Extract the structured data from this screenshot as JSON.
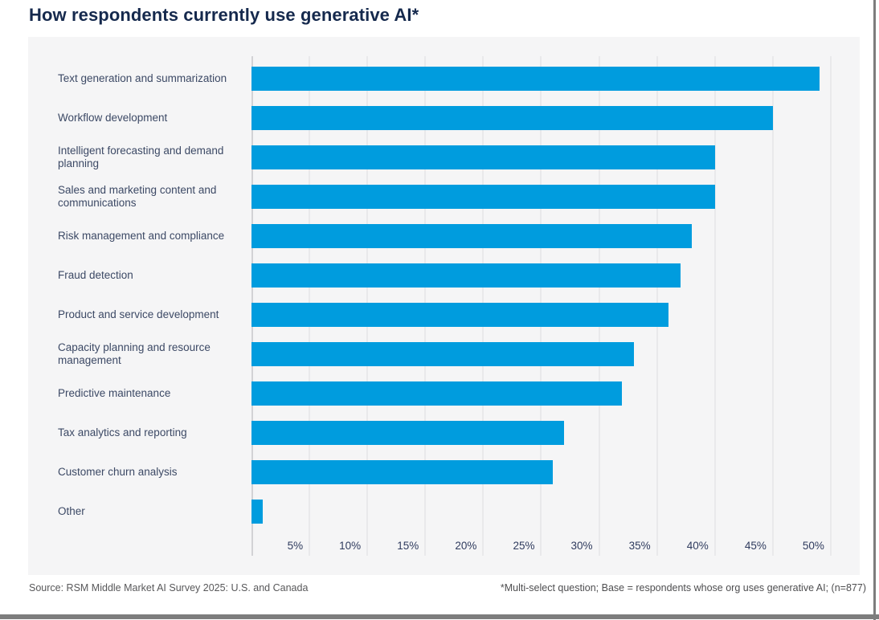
{
  "title": "How respondents currently use generative AI*",
  "chart_data": {
    "type": "bar",
    "orientation": "horizontal",
    "title": "How respondents currently use generative AI*",
    "categories": [
      "Text generation and summarization",
      "Workflow development",
      "Intelligent forecasting and demand planning",
      "Sales and marketing content and communications",
      "Risk management and compliance",
      "Fraud detection",
      "Product and service development",
      "Capacity planning and resource management",
      "Predictive maintenance",
      "Tax analytics and reporting",
      "Customer churn analysis",
      "Other"
    ],
    "values": [
      49,
      45,
      40,
      40,
      38,
      37,
      36,
      33,
      32,
      27,
      26,
      1
    ],
    "unit": "%",
    "x_ticks": [
      "5%",
      "10%",
      "15%",
      "20%",
      "25%",
      "30%",
      "35%",
      "40%",
      "45%",
      "50%"
    ],
    "x_tick_values": [
      5,
      10,
      15,
      20,
      25,
      30,
      35,
      40,
      45,
      50
    ],
    "xlim": [
      0,
      52.5
    ],
    "grid": true,
    "legend": "none",
    "bar_color": "#009CDE"
  },
  "colors": {
    "bar": "#009CDE",
    "title_text": "#15294d",
    "label_text": "#3c4965",
    "panel_background": "#f5f5f6",
    "gridline": "#e9e9eb",
    "page_border": "#7d7d7d"
  },
  "footer": {
    "source": "Source: RSM Middle Market AI Survey 2025: U.S. and Canada",
    "note": "*Multi-select question; Base = respondents whose org uses generative AI; (n=877)"
  }
}
